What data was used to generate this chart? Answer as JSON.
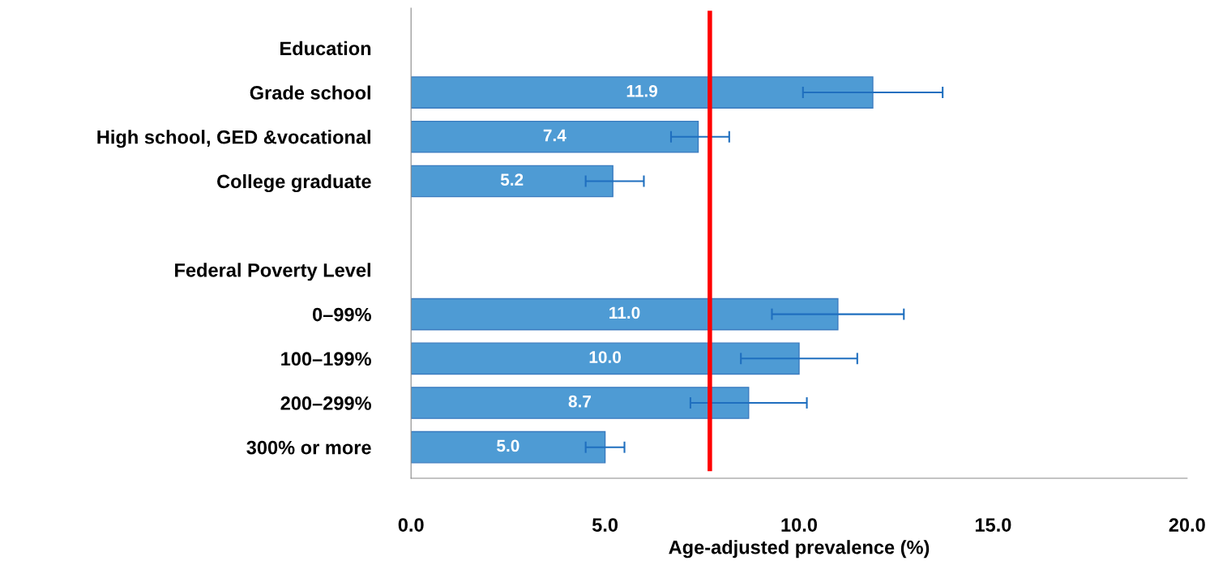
{
  "chart_data": {
    "type": "bar",
    "orientation": "horizontal",
    "xlabel": "Age-adjusted prevalence (%)",
    "categories": [
      "Education",
      "Grade school",
      "High school, GED &vocational",
      "College graduate",
      null,
      "Federal Poverty Level",
      "0–99%",
      "100–199%",
      "200–299%",
      "300% or more"
    ],
    "values": [
      null,
      11.9,
      7.4,
      5.2,
      null,
      null,
      11.0,
      10.0,
      8.7,
      5.0
    ],
    "value_labels": [
      null,
      "11.9",
      "7.4",
      "5.2",
      null,
      null,
      "11.0",
      "10.0",
      "8.7",
      "5.0"
    ],
    "errors": [
      null,
      [
        10.1,
        13.7
      ],
      [
        6.7,
        8.2
      ],
      [
        4.5,
        6.0
      ],
      null,
      null,
      [
        9.3,
        12.7
      ],
      [
        8.5,
        11.5
      ],
      [
        7.2,
        10.2
      ],
      [
        4.5,
        5.5
      ]
    ],
    "color": "#4e9bd4",
    "xlim": [
      0,
      20
    ],
    "xticks": [
      {
        "value": 0,
        "label": "0.0"
      },
      {
        "value": 5,
        "label": "5.0"
      },
      {
        "value": 10,
        "label": "10.0"
      },
      {
        "value": 15,
        "label": "15.0"
      },
      {
        "value": 20,
        "label": "20.0"
      }
    ],
    "ref_lines": [
      {
        "axis": "x",
        "value": 7.7,
        "color": "#ff0000"
      }
    ],
    "grid": false
  }
}
